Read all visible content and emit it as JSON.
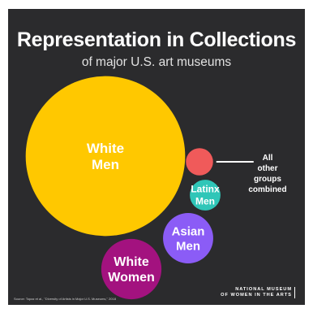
{
  "header": {
    "title": "Representation in Collections",
    "subtitle": "of major U.S. art museums"
  },
  "chart_data": {
    "type": "bubble",
    "title": "Representation in Collections",
    "subtitle": "of major U.S. art museums",
    "series": [
      {
        "name": "White Men",
        "label_lines": [
          "White",
          "Men"
        ],
        "value": 75.7,
        "color": "#ffc800"
      },
      {
        "name": "White Women",
        "label_lines": [
          "White",
          "Women"
        ],
        "value": 10.8,
        "color": "#a3127f"
      },
      {
        "name": "Asian Men",
        "label_lines": [
          "Asian",
          "Men"
        ],
        "value": 7.5,
        "color": "#8b5cf6"
      },
      {
        "name": "Latinx Men",
        "label_lines": [
          "Latinx",
          "Men"
        ],
        "value": 2.8,
        "color": "#2fc6b8"
      },
      {
        "name": "All other groups combined",
        "label_lines": [
          "All",
          "other",
          "groups",
          "combined"
        ],
        "value": 2.2,
        "color": "#f05a5a"
      }
    ],
    "legend": "callout-right"
  },
  "footer": {
    "source": "Source: Topaz et al., \"Diversity of Artists in Major U.S. Museums,\" 2018",
    "logo_line1": "NATIONAL MUSEUM",
    "logo_line2": "OF WOMEN IN THE ARTS"
  }
}
